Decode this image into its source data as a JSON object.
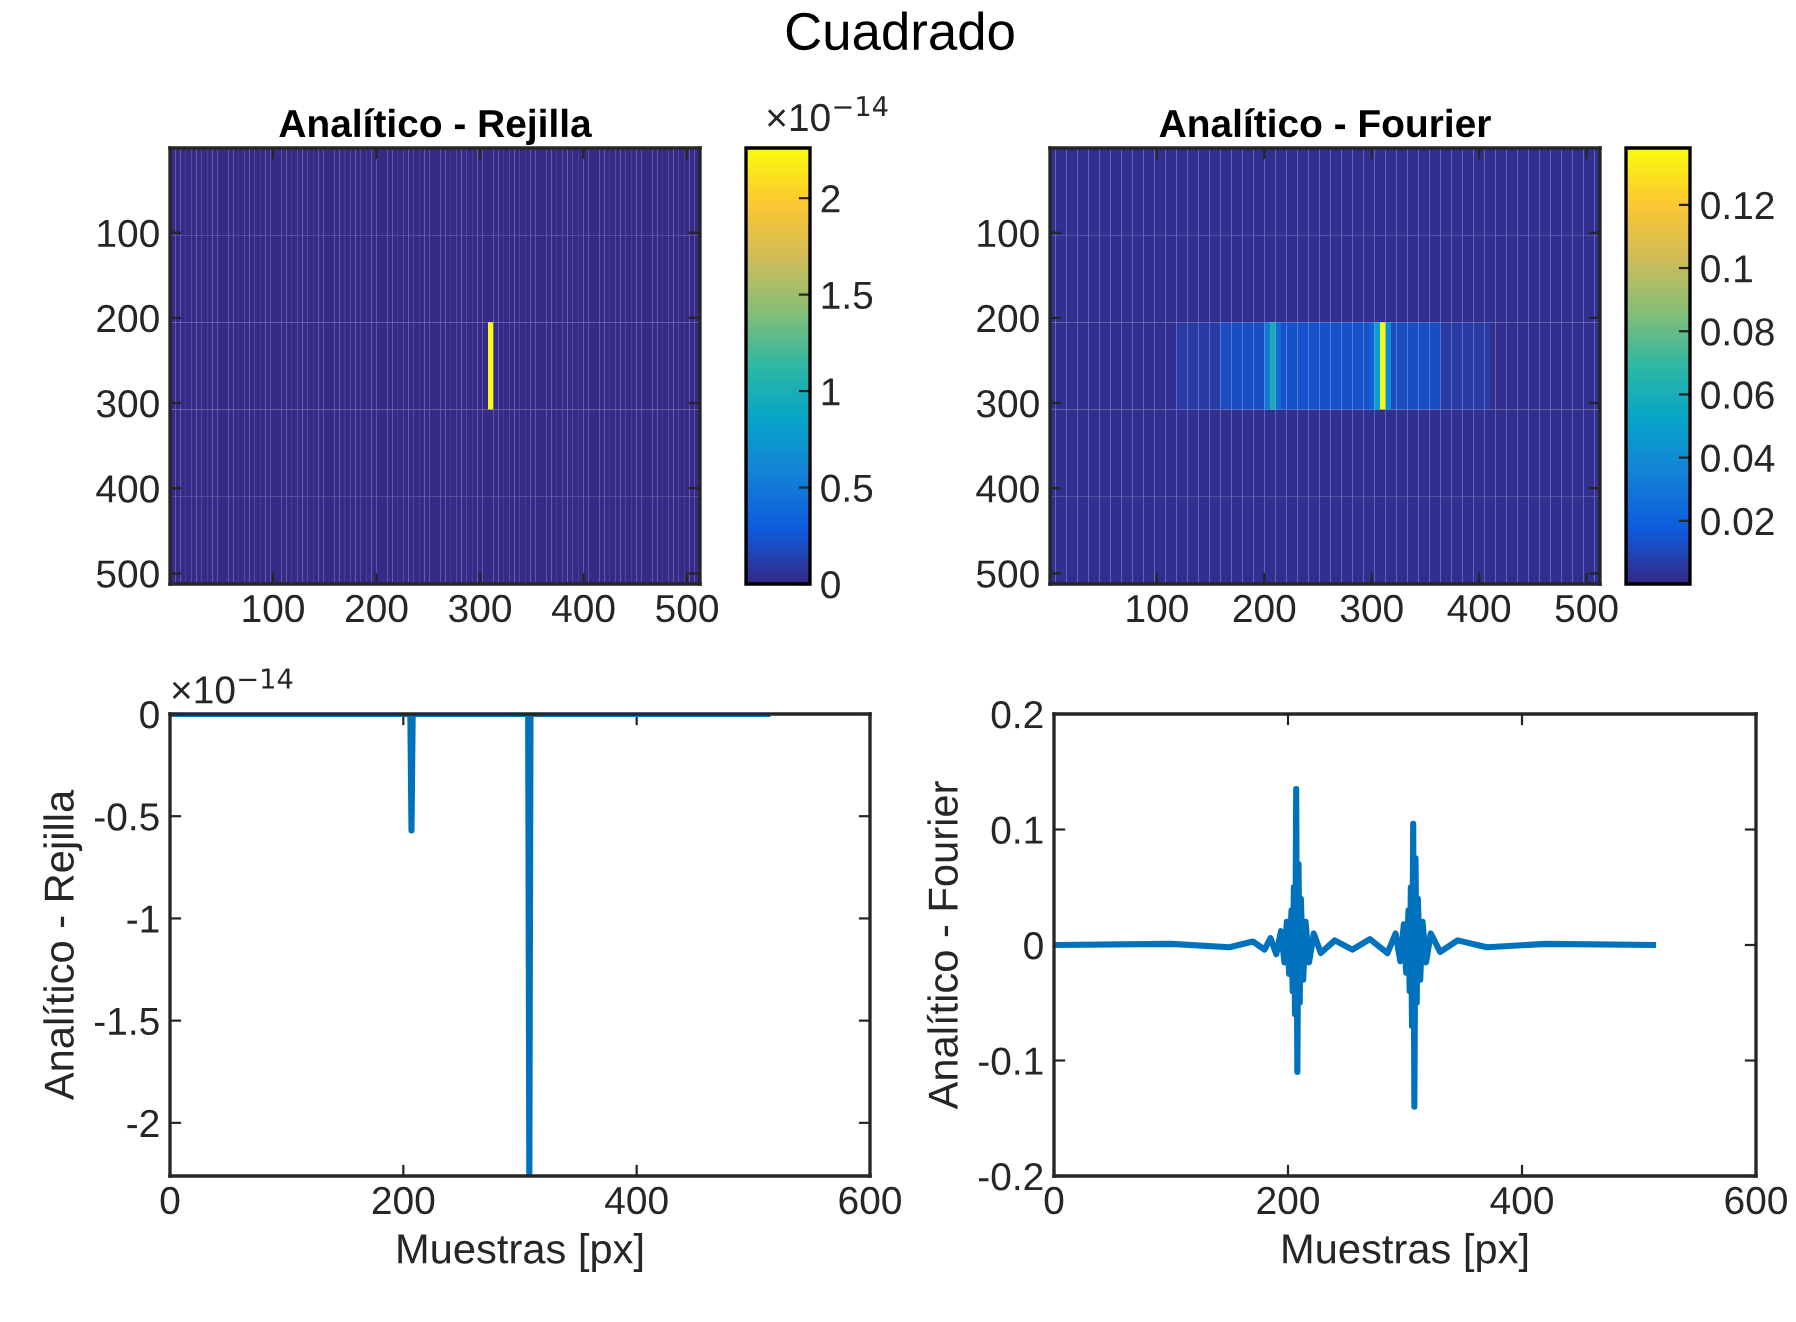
{
  "chart_data": [
    {
      "type": "other",
      "title": "Cuadrado"
    },
    {
      "type": "heatmap",
      "title": "Analítico - Rejilla",
      "xlim": [
        0.5,
        512.5
      ],
      "ylim": [
        512.5,
        0.5
      ],
      "xticks": [
        100,
        200,
        300,
        400,
        500
      ],
      "yticks": [
        100,
        200,
        300,
        400,
        500
      ],
      "clim": [
        0,
        2.26
      ],
      "cticks": [
        0,
        0.5,
        1,
        1.5,
        2
      ],
      "annotations": [
        "×10$^{−14}$"
      ],
      "cells": [
        [
          0,
          0,
          0,
          0,
          0,
          0,
          0,
          0,
          0,
          0,
          0,
          0,
          0,
          0,
          0,
          0,
          0,
          0,
          0,
          0,
          0,
          0,
          0,
          0,
          0,
          0,
          0,
          0,
          0,
          0,
          0,
          0,
          0,
          0,
          0,
          0,
          0,
          0,
          0,
          0,
          0,
          0,
          0,
          0,
          0,
          0,
          0,
          0,
          0,
          0,
          0,
          0,
          0,
          0,
          0,
          0,
          0,
          0,
          0,
          0,
          0,
          0,
          0,
          0,
          0,
          0,
          0,
          0,
          0,
          0,
          0,
          0,
          0,
          0,
          0,
          0,
          0,
          0,
          0,
          0,
          0,
          0,
          0,
          0,
          0,
          0,
          0,
          0,
          0,
          0,
          0,
          0,
          0,
          0,
          0,
          0,
          0,
          0,
          0,
          0
        ],
        [
          0,
          0,
          0,
          0,
          0,
          0,
          0,
          0,
          0,
          0,
          0,
          0,
          0,
          0,
          0,
          0,
          0,
          0,
          0,
          0,
          0,
          0,
          0,
          0,
          0,
          0,
          0,
          0,
          0,
          0,
          0,
          0,
          0,
          0,
          0,
          0,
          0,
          0,
          0,
          0,
          0,
          0,
          0,
          0,
          0,
          0,
          0,
          0,
          0,
          0,
          0,
          0,
          0,
          0,
          0,
          0,
          0,
          0,
          0,
          0,
          0,
          0,
          0,
          0,
          0,
          0,
          0,
          0,
          0,
          0,
          0,
          0,
          0,
          0,
          0,
          0,
          0,
          0,
          0,
          0,
          0,
          0,
          0,
          0,
          0,
          0,
          0,
          0,
          0,
          0,
          0,
          0,
          0,
          0,
          0,
          0,
          0,
          0,
          0,
          0
        ],
        [
          0,
          0,
          0,
          0,
          0,
          0,
          0,
          0,
          0,
          0,
          0,
          0,
          0,
          0,
          0,
          0,
          0,
          0,
          0,
          0,
          0,
          0,
          0,
          0,
          0,
          0,
          0,
          0,
          0,
          0,
          0,
          0,
          0,
          0,
          0,
          0,
          0,
          0,
          0,
          0,
          0,
          0,
          0,
          0,
          0,
          0,
          0,
          0,
          0,
          0,
          0,
          0,
          0,
          0,
          0,
          0,
          0,
          0,
          0,
          0,
          2.26,
          0,
          0,
          0,
          0,
          0,
          0,
          0,
          0,
          0,
          0,
          0,
          0,
          0,
          0,
          0,
          0,
          0,
          0,
          0,
          0,
          0,
          0,
          0,
          0,
          0,
          0,
          0,
          0,
          0,
          0,
          0,
          0,
          0,
          0,
          0,
          0,
          0,
          0,
          0
        ],
        [
          0,
          0,
          0,
          0,
          0,
          0,
          0,
          0,
          0,
          0,
          0,
          0,
          0,
          0,
          0,
          0,
          0,
          0,
          0,
          0,
          0,
          0,
          0,
          0,
          0,
          0,
          0,
          0,
          0,
          0,
          0,
          0,
          0,
          0,
          0,
          0,
          0,
          0,
          0,
          0,
          0,
          0,
          0,
          0,
          0,
          0,
          0,
          0,
          0,
          0,
          0,
          0,
          0,
          0,
          0,
          0,
          0,
          0,
          0,
          0,
          0,
          0,
          0,
          0,
          0,
          0,
          0,
          0,
          0,
          0,
          0,
          0,
          0,
          0,
          0,
          0,
          0,
          0,
          0,
          0,
          0,
          0,
          0,
          0,
          0,
          0,
          0,
          0,
          0,
          0,
          0,
          0,
          0,
          0,
          0,
          0,
          0,
          0,
          0,
          0
        ],
        [
          0,
          0,
          0,
          0,
          0,
          0,
          0,
          0,
          0,
          0,
          0,
          0,
          0,
          0,
          0,
          0,
          0,
          0,
          0,
          0,
          0,
          0,
          0,
          0,
          0,
          0,
          0,
          0,
          0,
          0,
          0,
          0,
          0,
          0,
          0,
          0,
          0,
          0,
          0,
          0,
          0,
          0,
          0,
          0,
          0,
          0,
          0,
          0,
          0,
          0,
          0,
          0,
          0,
          0,
          0,
          0,
          0,
          0,
          0,
          0,
          0,
          0,
          0,
          0,
          0,
          0,
          0,
          0,
          0,
          0,
          0,
          0,
          0,
          0,
          0,
          0,
          0,
          0,
          0,
          0,
          0,
          0,
          0,
          0,
          0,
          0,
          0,
          0,
          0,
          0,
          0,
          0,
          0,
          0,
          0,
          0,
          0,
          0,
          0,
          0
        ]
      ]
    },
    {
      "type": "heatmap",
      "title": "Analítico - Fourier",
      "xlim": [
        0.5,
        512.5
      ],
      "ylim": [
        512.5,
        0.5
      ],
      "xticks": [
        100,
        200,
        300,
        400,
        500
      ],
      "yticks": [
        100,
        200,
        300,
        400,
        500
      ],
      "clim": [
        0,
        0.138
      ],
      "cticks": [
        0.02,
        0.04,
        0.06,
        0.08,
        0.1,
        0.12
      ],
      "cells": [
        [
          0.002,
          0.002,
          0.002,
          0.002,
          0.002,
          0.002,
          0.002,
          0.002,
          0.002,
          0.002,
          0.002,
          0.002,
          0.002,
          0.002,
          0.002,
          0.002,
          0.002,
          0.002,
          0.002,
          0.002,
          0.002,
          0.002,
          0.002,
          0.002,
          0.002,
          0.002,
          0.002,
          0.002,
          0.002,
          0.002,
          0.002,
          0.002,
          0.002,
          0.002,
          0.002,
          0.002,
          0.002,
          0.002,
          0.002,
          0.002,
          0.002,
          0.002,
          0.002,
          0.002,
          0.002,
          0.002,
          0.002,
          0.002,
          0.002,
          0.002,
          0.002,
          0.002,
          0.002,
          0.002,
          0.002,
          0.002,
          0.002,
          0.002,
          0.002,
          0.002,
          0.002,
          0.002,
          0.002,
          0.002,
          0.002,
          0.002,
          0.002,
          0.002,
          0.002,
          0.002,
          0.002,
          0.002,
          0.002,
          0.002,
          0.002,
          0.002,
          0.002,
          0.002,
          0.002,
          0.002,
          0.002,
          0.002,
          0.002,
          0.002,
          0.002,
          0.002,
          0.002,
          0.002,
          0.002,
          0.002,
          0.002,
          0.002,
          0.002,
          0.002,
          0.002,
          0.002,
          0.002,
          0.002,
          0.002,
          0.002
        ],
        [
          0.002,
          0.002,
          0.002,
          0.002,
          0.002,
          0.002,
          0.002,
          0.002,
          0.002,
          0.002,
          0.002,
          0.002,
          0.002,
          0.002,
          0.002,
          0.002,
          0.002,
          0.002,
          0.002,
          0.002,
          0.002,
          0.002,
          0.002,
          0.002,
          0.002,
          0.002,
          0.002,
          0.002,
          0.002,
          0.002,
          0.002,
          0.002,
          0.002,
          0.002,
          0.002,
          0.002,
          0.002,
          0.002,
          0.002,
          0.002,
          0.002,
          0.002,
          0.002,
          0.002,
          0.002,
          0.002,
          0.002,
          0.002,
          0.002,
          0.002,
          0.002,
          0.002,
          0.002,
          0.002,
          0.002,
          0.002,
          0.002,
          0.002,
          0.002,
          0.002,
          0.002,
          0.002,
          0.002,
          0.002,
          0.002,
          0.002,
          0.002,
          0.002,
          0.002,
          0.002,
          0.002,
          0.002,
          0.002,
          0.002,
          0.002,
          0.002,
          0.002,
          0.002,
          0.002,
          0.002,
          0.002,
          0.002,
          0.002,
          0.002,
          0.002,
          0.002,
          0.002,
          0.002,
          0.002,
          0.002,
          0.002,
          0.002,
          0.002,
          0.002,
          0.002,
          0.002,
          0.002,
          0.002,
          0.002,
          0.002
        ],
        [
          0.002,
          0.002,
          0.002,
          0.002,
          0.002,
          0.002,
          0.002,
          0.002,
          0.002,
          0.002,
          0.002,
          0.002,
          0.002,
          0.002,
          0.002,
          0.002,
          0.002,
          0.002,
          0.002,
          0.002,
          0.002,
          0.002,
          0.002,
          0.006,
          0.006,
          0.006,
          0.006,
          0.006,
          0.006,
          0.006,
          0.006,
          0.012,
          0.012,
          0.012,
          0.012,
          0.012,
          0.012,
          0.012,
          0.012,
          0.03,
          0.06,
          0.025,
          0.014,
          0.014,
          0.014,
          0.014,
          0.014,
          0.014,
          0.014,
          0.014,
          0.014,
          0.014,
          0.014,
          0.014,
          0.014,
          0.014,
          0.014,
          0.014,
          0.02,
          0.05,
          0.138,
          0.04,
          0.012,
          0.012,
          0.012,
          0.012,
          0.012,
          0.012,
          0.012,
          0.012,
          0.012,
          0.006,
          0.006,
          0.006,
          0.006,
          0.006,
          0.006,
          0.006,
          0.006,
          0.006,
          0.002,
          0.002,
          0.002,
          0.002,
          0.002,
          0.002,
          0.002,
          0.002,
          0.002,
          0.002,
          0.002,
          0.002,
          0.002,
          0.002,
          0.002,
          0.002,
          0.002,
          0.002,
          0.002,
          0.002
        ],
        [
          0.002,
          0.002,
          0.002,
          0.002,
          0.002,
          0.002,
          0.002,
          0.002,
          0.002,
          0.002,
          0.002,
          0.002,
          0.002,
          0.002,
          0.002,
          0.002,
          0.002,
          0.002,
          0.002,
          0.002,
          0.002,
          0.002,
          0.002,
          0.002,
          0.002,
          0.002,
          0.002,
          0.002,
          0.002,
          0.002,
          0.002,
          0.002,
          0.002,
          0.002,
          0.002,
          0.002,
          0.002,
          0.002,
          0.002,
          0.002,
          0.002,
          0.002,
          0.002,
          0.002,
          0.002,
          0.002,
          0.002,
          0.002,
          0.002,
          0.002,
          0.002,
          0.002,
          0.002,
          0.002,
          0.002,
          0.002,
          0.002,
          0.002,
          0.002,
          0.002,
          0.002,
          0.002,
          0.002,
          0.002,
          0.002,
          0.002,
          0.002,
          0.002,
          0.002,
          0.002,
          0.002,
          0.002,
          0.002,
          0.002,
          0.002,
          0.002,
          0.002,
          0.002,
          0.002,
          0.002,
          0.002,
          0.002,
          0.002,
          0.002,
          0.002,
          0.002,
          0.002,
          0.002,
          0.002,
          0.002,
          0.002,
          0.002,
          0.002,
          0.002,
          0.002,
          0.002,
          0.002,
          0.002,
          0.002,
          0.002
        ],
        [
          0.002,
          0.002,
          0.002,
          0.002,
          0.002,
          0.002,
          0.002,
          0.002,
          0.002,
          0.002,
          0.002,
          0.002,
          0.002,
          0.002,
          0.002,
          0.002,
          0.002,
          0.002,
          0.002,
          0.002,
          0.002,
          0.002,
          0.002,
          0.002,
          0.002,
          0.002,
          0.002,
          0.002,
          0.002,
          0.002,
          0.002,
          0.002,
          0.002,
          0.002,
          0.002,
          0.002,
          0.002,
          0.002,
          0.002,
          0.002,
          0.002,
          0.002,
          0.002,
          0.002,
          0.002,
          0.002,
          0.002,
          0.002,
          0.002,
          0.002,
          0.002,
          0.002,
          0.002,
          0.002,
          0.002,
          0.002,
          0.002,
          0.002,
          0.002,
          0.002,
          0.002,
          0.002,
          0.002,
          0.002,
          0.002,
          0.002,
          0.002,
          0.002,
          0.002,
          0.002,
          0.002,
          0.002,
          0.002,
          0.002,
          0.002,
          0.002,
          0.002,
          0.002,
          0.002,
          0.002,
          0.002,
          0.002,
          0.002,
          0.002,
          0.002,
          0.002,
          0.002,
          0.002,
          0.002,
          0.002,
          0.002,
          0.002,
          0.002,
          0.002,
          0.002,
          0.002,
          0.002,
          0.002,
          0.002,
          0.002
        ]
      ]
    },
    {
      "type": "line",
      "xlabel": "Muestras [px]",
      "ylabel": "Analítico - Rejilla",
      "xlim": [
        0,
        600
      ],
      "xticks": [
        0,
        200,
        400,
        600
      ],
      "ylim": [
        -2.26,
        0
      ],
      "yticks": [
        -2,
        -1.5,
        -1,
        -0.5,
        0
      ],
      "annotations": [
        "×10$^{−14}$"
      ],
      "series": [
        {
          "color": "#0072bd",
          "x": [
            1,
            206,
            207,
            208,
            307,
            308,
            309,
            512
          ],
          "values": [
            0,
            0,
            -0.57,
            0,
            0,
            -2.26,
            0,
            0
          ]
        }
      ]
    },
    {
      "type": "line",
      "xlabel": "Muestras [px]",
      "ylabel": "Analítico - Fourier",
      "xlim": [
        0,
        600
      ],
      "xticks": [
        0,
        200,
        400,
        600
      ],
      "ylim": [
        -0.2,
        0.2
      ],
      "yticks": [
        -0.2,
        -0.1,
        0,
        0.1,
        0.2
      ],
      "series": [
        {
          "color": "#0072bd",
          "x": [
            1,
            100,
            150,
            170,
            180,
            185,
            190,
            194,
            197,
            199,
            201,
            203,
            204,
            205,
            206,
            207,
            208,
            209,
            210,
            211,
            213,
            215,
            218,
            222,
            228,
            240,
            255,
            270,
            285,
            292,
            296,
            299,
            301,
            303,
            304,
            305,
            306,
            307,
            308,
            309,
            310,
            311,
            313,
            315,
            318,
            322,
            330,
            345,
            370,
            420,
            512
          ],
          "values": [
            0,
            0.001,
            -0.002,
            0.003,
            -0.004,
            0.006,
            -0.008,
            0.012,
            -0.015,
            0.02,
            -0.025,
            0.03,
            -0.04,
            0.05,
            -0.06,
            0.135,
            -0.11,
            0.07,
            -0.05,
            0.04,
            -0.03,
            0.02,
            -0.015,
            0.01,
            -0.007,
            0.004,
            -0.004,
            0.005,
            -0.007,
            0.01,
            -0.014,
            0.018,
            -0.024,
            0.03,
            -0.04,
            0.05,
            -0.07,
            0.105,
            -0.14,
            0.075,
            -0.05,
            0.04,
            -0.03,
            0.02,
            -0.015,
            0.01,
            -0.006,
            0.004,
            -0.002,
            0.001,
            0
          ]
        }
      ]
    }
  ]
}
